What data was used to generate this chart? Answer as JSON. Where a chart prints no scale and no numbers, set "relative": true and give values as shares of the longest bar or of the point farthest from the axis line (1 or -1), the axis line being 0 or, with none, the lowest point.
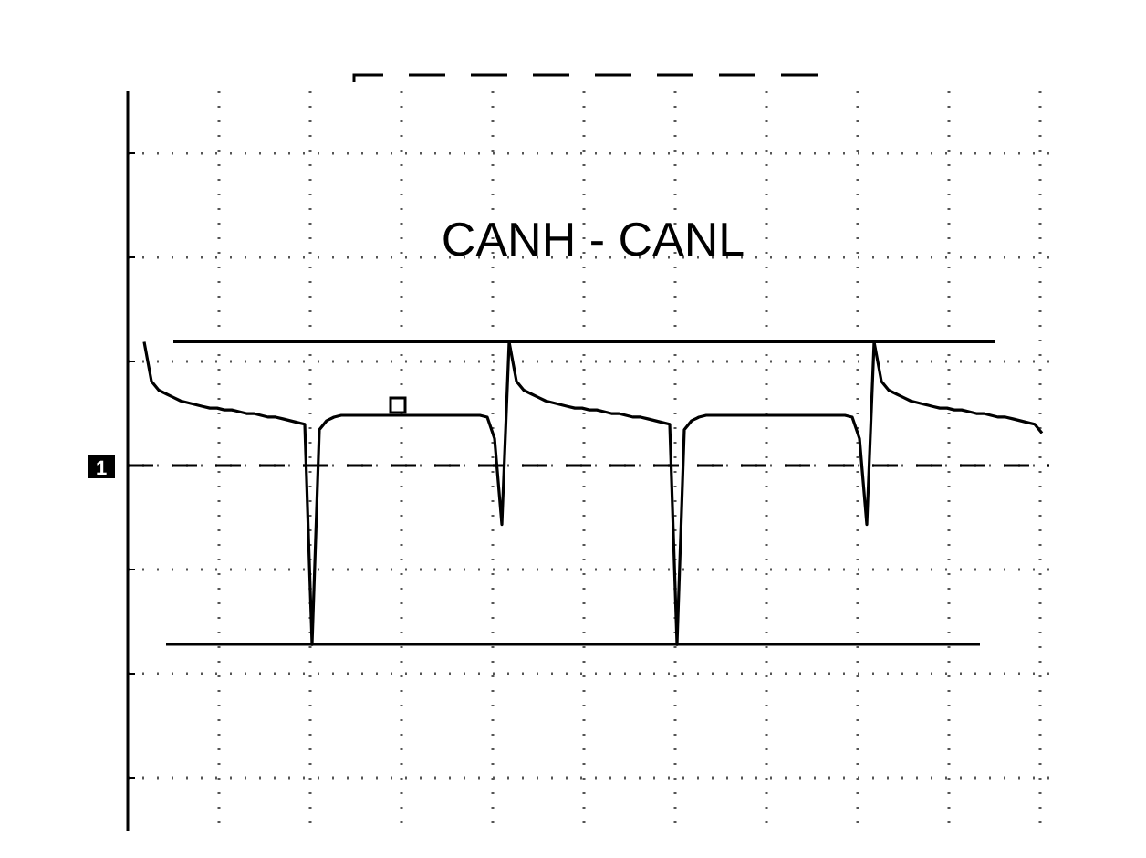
{
  "chart_data": {
    "type": "line",
    "title": "CANH - CANL",
    "relative": true,
    "grid": true,
    "marker": "none",
    "line_style": "solid",
    "annotations": [
      "1"
    ],
    "categories": [
      null,
      null,
      null,
      null,
      null,
      null,
      null,
      null,
      null,
      null,
      null,
      null,
      null,
      null,
      null,
      null,
      null,
      null,
      null,
      null,
      null,
      null,
      null,
      null,
      null,
      null,
      null,
      null,
      null,
      null,
      null,
      null,
      null,
      null,
      null,
      null,
      null,
      null,
      null,
      null,
      null,
      null,
      null,
      null,
      null,
      null,
      null,
      null,
      null,
      null,
      null,
      null,
      null,
      null,
      null,
      null,
      null,
      null,
      null,
      null,
      null,
      null,
      null,
      null,
      null,
      null,
      null,
      null,
      null,
      null,
      null,
      null,
      null,
      null,
      null,
      null,
      null,
      null,
      null,
      null,
      null,
      null,
      null,
      null,
      null,
      null,
      null,
      null,
      null,
      null,
      null,
      null,
      null,
      null,
      null,
      null,
      null,
      null,
      null,
      null,
      null,
      null,
      null,
      null,
      null,
      null,
      null,
      null,
      null,
      null,
      null,
      null,
      null,
      null,
      null,
      null,
      null,
      null,
      null,
      null,
      null,
      null,
      null,
      null
    ],
    "series": [
      {
        "color": "#000000",
        "values": [
          0.69,
          0.47,
          0.42,
          0.4,
          0.38,
          0.36,
          0.35,
          0.34,
          0.33,
          0.32,
          0.32,
          0.31,
          0.31,
          0.3,
          0.29,
          0.29,
          0.28,
          0.27,
          0.27,
          0.26,
          0.25,
          0.24,
          0.23,
          -1,
          0.2,
          0.25,
          0.27,
          0.28,
          0.28,
          0.28,
          0.28,
          0.28,
          0.28,
          0.28,
          0.28,
          0.28,
          0.28,
          0.28,
          0.28,
          0.28,
          0.28,
          0.28,
          0.28,
          0.28,
          0.28,
          0.28,
          0.28,
          0.27,
          0.15,
          -0.33,
          0.69,
          0.47,
          0.42,
          0.4,
          0.38,
          0.36,
          0.35,
          0.34,
          0.33,
          0.32,
          0.32,
          0.31,
          0.31,
          0.3,
          0.29,
          0.29,
          0.28,
          0.27,
          0.27,
          0.26,
          0.25,
          0.24,
          0.23,
          -1,
          0.2,
          0.25,
          0.27,
          0.28,
          0.28,
          0.28,
          0.28,
          0.28,
          0.28,
          0.28,
          0.28,
          0.28,
          0.28,
          0.28,
          0.28,
          0.28,
          0.28,
          0.28,
          0.28,
          0.28,
          0.28,
          0.28,
          0.28,
          0.27,
          0.15,
          -0.33,
          0.69,
          0.47,
          0.42,
          0.4,
          0.38,
          0.36,
          0.35,
          0.34,
          0.33,
          0.32,
          0.32,
          0.31,
          0.31,
          0.3,
          0.29,
          0.29,
          0.28,
          0.27,
          0.27,
          0.26,
          0.25,
          0.24,
          0.23,
          0.18
        ]
      }
    ],
    "ref_lines": [
      {
        "axis": "y",
        "value": 0.69,
        "color": "#000000",
        "line_style": "solid"
      },
      {
        "axis": "y",
        "value": -1,
        "color": "#000000",
        "line_style": "solid"
      },
      {
        "axis": "y",
        "value": 0,
        "color": "#000000",
        "line_style": "dashed"
      }
    ]
  }
}
